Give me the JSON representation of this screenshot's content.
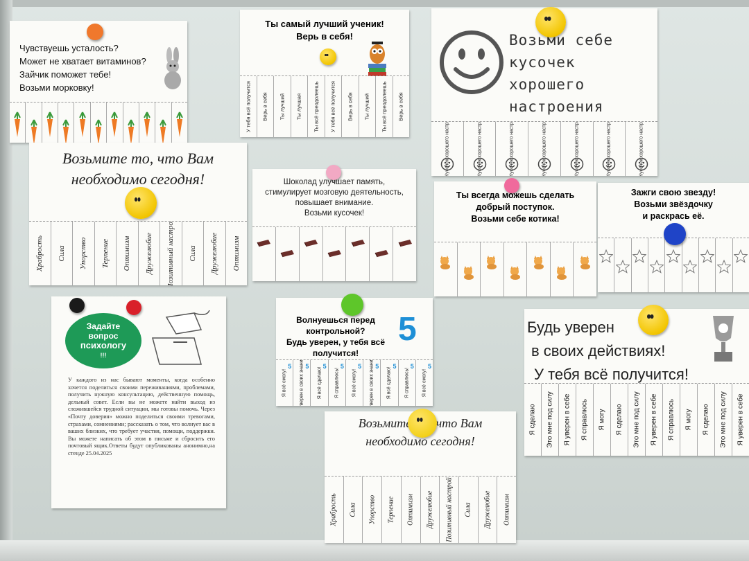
{
  "card_carrot": {
    "lines": [
      "Чувствуешь усталость?",
      "Может не хватает витаминов?",
      "Зайчик поможет тебе!",
      "Возьми морковку!"
    ],
    "icon": "carrot-icon",
    "bunny": "bunny-icon"
  },
  "card_best": {
    "title": "Ты самый лучший ученик!",
    "subtitle": "Верь в себя!",
    "tabs": [
      "У тебя всё получится",
      "Верь в себя",
      "Ты лучший",
      "Ты лучшая",
      "Ты всё преодолеешь",
      "У тебя всё получится",
      "Верь в себя",
      "Ты лучший",
      "Ты всё преодолеешь",
      "Верь в себя"
    ]
  },
  "card_mood": {
    "lines": [
      "Возьми себе",
      "кусочек хорошего",
      "настроения"
    ],
    "tab_text": "Кусочек хорошего настроения"
  },
  "card_need1": {
    "lines": [
      "Возьмите то, что Вам",
      "необходимо сегодня!"
    ],
    "tabs": [
      "Храбрость",
      "Сила",
      "Упорство",
      "Терпение",
      "Оптимизм",
      "Дружелюбие",
      "Позитивный настрой",
      "Сила",
      "Дружелюбие",
      "Оптимизм"
    ]
  },
  "card_choco": {
    "lines": [
      "Шоколад улучшает память,",
      "стимулирует мозговую деятельность,",
      "повышает внимание.",
      "Возьми кусочек!"
    ]
  },
  "card_cat": {
    "lines": [
      "Ты всегда можешь сделать",
      "добрый поступок.",
      "Возьми себе котика!"
    ]
  },
  "card_star": {
    "lines": [
      "Зажги свою звезду!",
      "Возьми звёздочку",
      "и раскрась её."
    ]
  },
  "card_psy": {
    "badge": [
      "Задайте",
      "вопрос",
      "психологу",
      "!!!"
    ],
    "body": "У каждого из нас бывают моменты, когда особенно хочется поделиться своими переживаниями, проблемами, получить нужную консультацию, действенную помощь, дельный совет. Если вы не можете найти выход из сложившейся трудной ситуации, мы готовы помочь. Через «Почту доверия» можно поделиться своими тревогами, страхами, сомнениями; рассказать о том, что волнует вас в ваших близких, что требует участия, помощи, поддержки. Вы можете написать об этом в письме и сбросить его почтовый ящик.Ответы будут опубликованы анонимно,на стенде 25.04.2025"
  },
  "card_test": {
    "lines": [
      "Волнуешься перед",
      "контрольной?",
      "Будь уверен, у тебя всё",
      "получится!"
    ],
    "big": "5",
    "tabs": [
      "Я всё смогу!",
      "Я уверен в своих знаниях!",
      "Я всё сделаю!",
      "Я справлюсь!",
      "Я всё смогу!",
      "Я уверен в своих знаниях!",
      "Я всё сделаю!",
      "Я справлюсь!",
      "Я всё смогу!"
    ],
    "tab_digit": "5"
  },
  "card_sure": {
    "lines": [
      "Будь уверен",
      "в своих действиях!",
      "У тебя всё получится!"
    ],
    "tabs": [
      "Я сделаю",
      "Это мне под силу",
      "Я уверен в себе",
      "Я справлюсь",
      "Я могу",
      "Я сделаю",
      "Это мне под силу",
      "Я уверен в себе",
      "Я справлюсь",
      "Я могу",
      "Я сделаю",
      "Это мне под силу",
      "Я уверен в себе"
    ]
  },
  "card_need2": {
    "lines": [
      "Возьмите то, что Вам",
      "необходимо сегодня!"
    ],
    "tabs": [
      "Храбрость",
      "Сила",
      "Упорство",
      "Терпение",
      "Оптимизм",
      "Дружелюбие",
      "Позитивный настрой",
      "Сила",
      "Дружелюбие",
      "Оптимизм"
    ]
  },
  "colors": {
    "magnet_orange": "#f0782c",
    "magnet_yellow": "#f3d11a",
    "magnet_pink": "#f06a9c",
    "magnet_green": "#5ec62a",
    "magnet_blue": "#1f44c7",
    "magnet_red": "#d9202a",
    "magnet_black": "#1a1a1a",
    "badge_green": "#1e9a57",
    "digit_blue": "#1e8fd6"
  }
}
